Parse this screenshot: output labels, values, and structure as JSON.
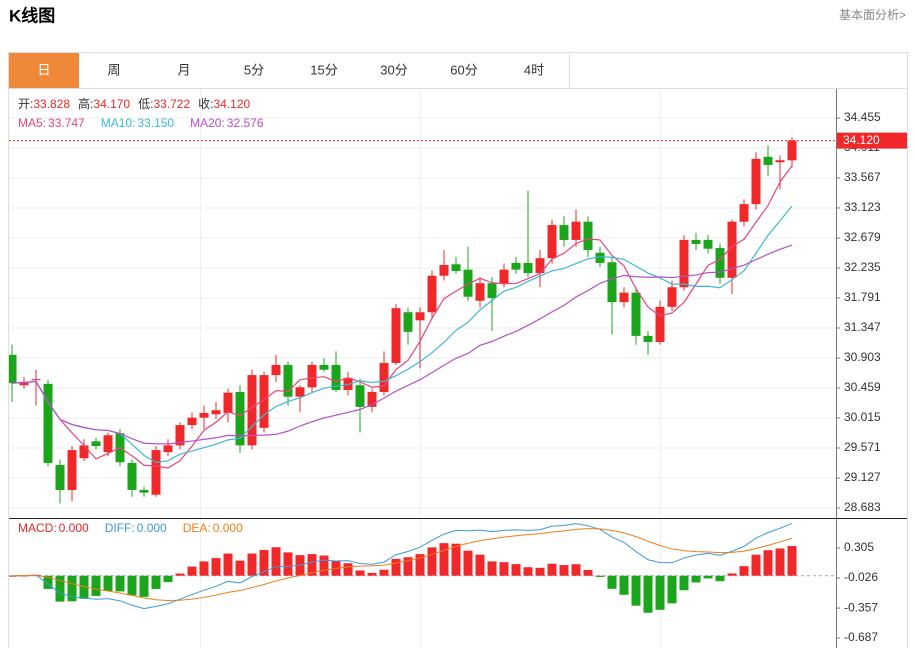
{
  "header": {
    "title": "K线图",
    "link": "基本面分析>"
  },
  "tabs": {
    "items": [
      "日",
      "周",
      "月",
      "5分",
      "15分",
      "30分",
      "60分",
      "4时"
    ],
    "active": 0
  },
  "chart_data": [
    {
      "type": "candlestick",
      "ylim": [
        28.535,
        34.869
      ],
      "yticks": [
        34.455,
        34.011,
        33.567,
        33.123,
        32.679,
        32.235,
        31.791,
        31.347,
        30.903,
        30.459,
        30.015,
        29.571,
        29.127,
        28.683
      ],
      "grid": true,
      "up_color": "#f0282a",
      "down_color": "#1ba51b",
      "open": [
        30.95,
        30.5,
        30.58,
        30.52,
        29.32,
        28.95,
        29.42,
        29.67,
        29.51,
        29.79,
        29.35,
        28.95,
        28.88,
        29.51,
        29.61,
        29.91,
        30.02,
        30.07,
        30.09,
        30.4,
        29.61,
        29.87,
        30.65,
        30.8,
        30.33,
        30.47,
        30.8,
        30.8,
        30.43,
        30.5,
        30.18,
        30.4,
        30.83,
        31.58,
        31.46,
        31.58,
        32.12,
        32.29,
        32.21,
        31.75,
        32.01,
        32.01,
        32.31,
        32.31,
        32.16,
        32.38,
        32.87,
        32.65,
        32.92,
        32.46,
        32.32,
        31.73,
        31.87,
        31.23,
        31.14,
        31.66,
        31.95,
        32.65,
        32.65,
        32.53,
        32.09,
        32.92,
        33.18,
        33.88,
        33.8,
        33.828
      ],
      "high": [
        31.1,
        30.62,
        30.73,
        30.58,
        29.4,
        29.6,
        29.7,
        29.72,
        29.8,
        29.85,
        29.4,
        29.0,
        29.6,
        29.7,
        29.95,
        30.1,
        30.2,
        30.25,
        30.45,
        30.5,
        30.73,
        30.7,
        30.95,
        30.85,
        30.5,
        30.85,
        30.9,
        31.0,
        30.7,
        30.6,
        30.45,
        31.0,
        31.7,
        31.65,
        31.65,
        32.2,
        32.5,
        32.4,
        32.55,
        32.1,
        32.1,
        32.3,
        32.4,
        33.38,
        32.5,
        32.95,
        33.0,
        33.1,
        33.0,
        32.55,
        32.4,
        31.95,
        31.95,
        31.3,
        31.75,
        32.05,
        32.72,
        32.75,
        32.72,
        32.6,
        32.95,
        33.25,
        33.95,
        34.05,
        33.9,
        34.17
      ],
      "low": [
        30.25,
        30.45,
        30.2,
        29.3,
        28.75,
        28.78,
        29.38,
        29.55,
        29.45,
        29.3,
        28.85,
        28.85,
        28.85,
        29.45,
        29.55,
        29.85,
        29.85,
        30.0,
        29.95,
        29.5,
        29.55,
        29.8,
        30.55,
        30.2,
        30.1,
        30.4,
        30.7,
        30.4,
        30.35,
        29.8,
        30.1,
        30.35,
        30.8,
        31.1,
        30.75,
        31.5,
        32.05,
        32.15,
        31.75,
        31.65,
        31.3,
        31.95,
        32.15,
        32.1,
        31.95,
        32.3,
        32.55,
        32.55,
        32.4,
        32.25,
        31.25,
        31.65,
        31.1,
        30.95,
        31.1,
        31.6,
        31.9,
        32.5,
        32.45,
        32.0,
        31.85,
        32.85,
        33.1,
        33.6,
        33.4,
        33.722
      ],
      "close": [
        30.53,
        30.55,
        30.59,
        29.35,
        28.95,
        29.54,
        29.61,
        29.6,
        29.76,
        29.36,
        28.95,
        28.91,
        29.54,
        29.61,
        29.91,
        30.02,
        30.09,
        30.13,
        30.39,
        29.61,
        30.65,
        30.65,
        30.8,
        30.33,
        30.47,
        30.8,
        30.73,
        30.43,
        30.61,
        30.18,
        30.4,
        30.83,
        31.64,
        31.29,
        31.58,
        32.12,
        32.28,
        32.19,
        31.81,
        32.01,
        31.79,
        32.21,
        32.21,
        32.16,
        32.38,
        32.87,
        32.65,
        32.92,
        32.5,
        32.31,
        31.73,
        31.87,
        31.23,
        31.14,
        31.66,
        31.95,
        32.65,
        32.59,
        32.52,
        32.09,
        32.92,
        33.18,
        33.85,
        33.76,
        33.83,
        34.12
      ],
      "ohlc_legend": {
        "labels": [
          "开:",
          "高:",
          "低:",
          "收:"
        ],
        "values": [
          33.828,
          34.17,
          33.722,
          34.12
        ],
        "value_labels": [
          "33.828",
          "34.170",
          "33.722",
          "34.120"
        ]
      },
      "indicators": [
        {
          "name": "MA5:",
          "color": "#e8457c",
          "value": 33.747,
          "value_label": "33.747"
        },
        {
          "name": "MA10:",
          "color": "#3cb8d8",
          "value": 33.15,
          "value_label": "33.150"
        },
        {
          "name": "MA20:",
          "color": "#b84fc6",
          "value": 32.576,
          "value_label": "32.576"
        }
      ]
    },
    {
      "type": "macd",
      "ylim": [
        -0.797,
        0.636
      ],
      "yticks": [
        0.305,
        -0.026,
        -0.357,
        -0.687
      ],
      "up_color": "#f0282a",
      "down_color": "#1ba51b",
      "indicators": [
        {
          "name": "MACD:",
          "color": "#e8262a",
          "value": 0,
          "value_label": "0.000"
        },
        {
          "name": "DIFF:",
          "color": "#3a9ad9",
          "value": 0,
          "value_label": "0.000"
        },
        {
          "name": "DEA:",
          "color": "#f07d1a",
          "value": 0,
          "value_label": "0.000"
        }
      ]
    }
  ]
}
